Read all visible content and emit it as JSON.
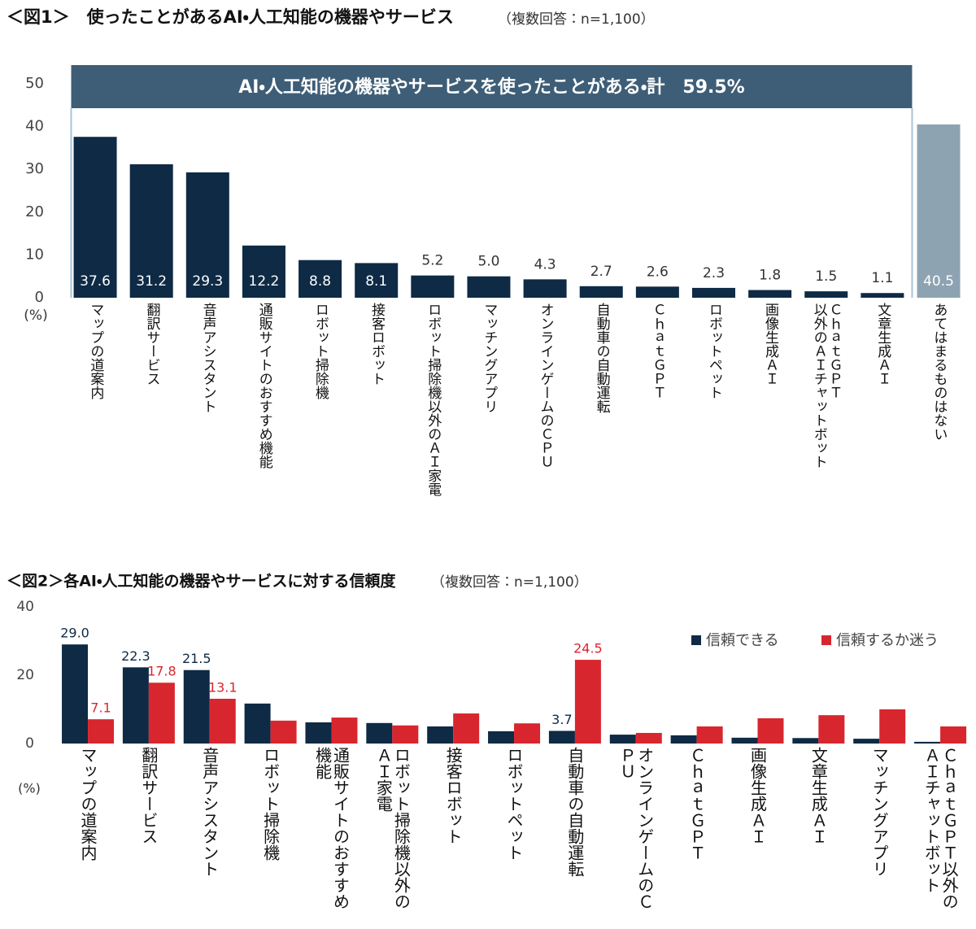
{
  "chart_data": [
    {
      "type": "bar",
      "title": "＜図1＞　使ったことがあるAI・人工知能の機器やサービス",
      "subtitle": "（複数回答：n=1,100）",
      "y_unit": "(%)",
      "annotation": "AI・人工知能の機器やサービスを使ったことがある・計　59.5%",
      "categories": [
        "マップの道案内",
        "翻訳サービス",
        "音声アシスタント",
        "通販サイトのおすすめ機能",
        "ロボット掃除機",
        "接客ロボット",
        "ロボット掃除機以外のＡＩ家電",
        "マッチングアプリ",
        "オンラインゲームのＣＰＵ",
        "自動車の自動運転",
        "ＣｈａｔＧＰＴ",
        "ロボットペット",
        "画像生成ＡＩ",
        "ＣｈａｔＧＰＴ\n以外のＡＩチャットボット",
        "文章生成ＡＩ",
        "あてはまるものはない"
      ],
      "values": [
        37.6,
        31.2,
        29.3,
        12.2,
        8.8,
        8.1,
        5.2,
        5.0,
        4.3,
        2.7,
        2.6,
        2.3,
        1.8,
        1.5,
        1.1,
        40.5
      ],
      "value_labels": [
        "37.6",
        "31.2",
        "29.3",
        "12.2",
        "8.8",
        "8.1",
        "5.2",
        "5.0",
        "4.3",
        "2.7",
        "2.6",
        "2.3",
        "1.8",
        "1.5",
        "1.1",
        "40.5"
      ],
      "colors": [
        "#0e2a45",
        "#0e2a45",
        "#0e2a45",
        "#0e2a45",
        "#0e2a45",
        "#0e2a45",
        "#0e2a45",
        "#0e2a45",
        "#0e2a45",
        "#0e2a45",
        "#0e2a45",
        "#0e2a45",
        "#0e2a45",
        "#0e2a45",
        "#0e2a45",
        "#8ea3b2"
      ],
      "ylim": [
        0,
        50
      ],
      "yticks": [
        0,
        10,
        20,
        30,
        40,
        50
      ]
    },
    {
      "type": "grouped_bar",
      "title": "＜図2＞各AI・人工知能の機器やサービスに対する信頼度",
      "subtitle": "（複数回答：n=1,100）",
      "y_unit": "(%)",
      "categories": [
        "マップの道案内",
        "翻訳サービス",
        "音声アシスタント",
        "ロボット掃除機",
        "通販サイトのおすすめ機能",
        "ロボット掃除機以外のＡＩ家電",
        "接客ロボット",
        "ロボットペット",
        "自動車の自動運転",
        "オンラインゲームのＣＰＵ",
        "ＣｈａｔＧＰＴ",
        "画像生成ＡＩ",
        "文章生成ＡＩ",
        "マッチングアプリ",
        "ＣｈａｔＧＰＴ以外のＡＩチャットボット"
      ],
      "series": [
        {
          "name": "信頼できる",
          "color": "#0e2a45",
          "values": [
            29.0,
            22.3,
            21.5,
            11.7,
            6.2,
            6.0,
            5.0,
            3.6,
            3.7,
            2.6,
            2.4,
            1.7,
            1.6,
            1.4,
            0.5
          ],
          "value_labels": [
            "29.0",
            "22.3",
            "21.5",
            null,
            null,
            null,
            null,
            null,
            "3.7",
            null,
            null,
            null,
            null,
            null,
            null
          ]
        },
        {
          "name": "信頼するか迷う",
          "color": "#d8262e",
          "values": [
            7.1,
            17.8,
            13.1,
            6.7,
            7.6,
            5.3,
            8.8,
            5.9,
            24.5,
            3.1,
            5.0,
            7.4,
            8.3,
            10.0,
            5.0
          ],
          "value_labels": [
            "7.1",
            "17.8",
            "13.1",
            null,
            null,
            null,
            null,
            null,
            "24.5",
            null,
            null,
            null,
            null,
            null,
            null
          ]
        }
      ],
      "ylim": [
        0,
        40
      ],
      "yticks": [
        0,
        20,
        40
      ],
      "legend": "upper right"
    }
  ]
}
